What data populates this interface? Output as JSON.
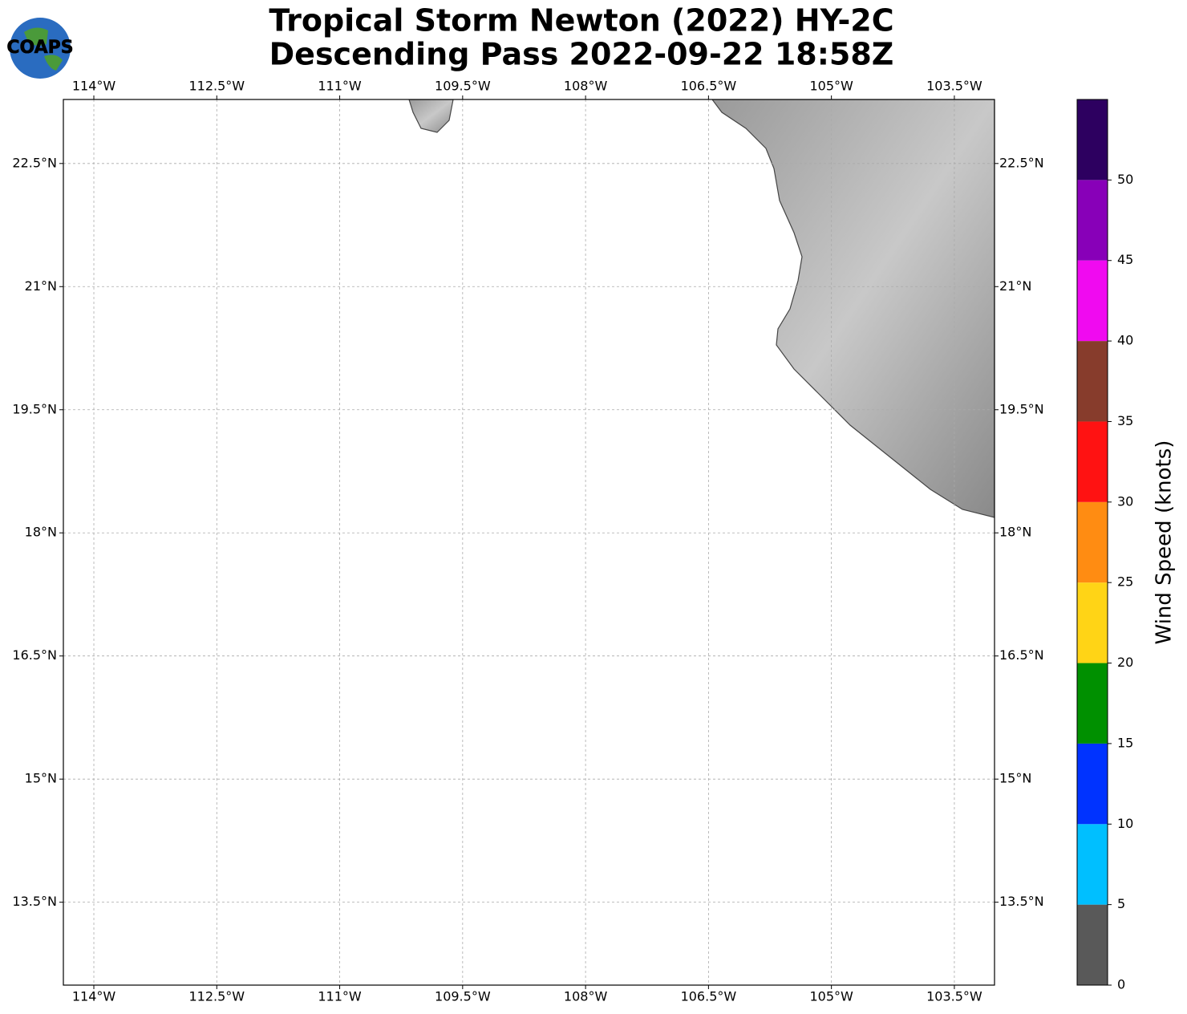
{
  "header": {
    "title": [
      "Tropical Storm Newton (2022) HY-2C",
      "Descending Pass 2022-09-22 18:58Z"
    ],
    "logo": "COAPS"
  },
  "map": {
    "xlim": [
      -114.372,
      -103.01
    ],
    "ylim": [
      12.49,
      23.28
    ],
    "xticks": [
      {
        "value": -114,
        "label": "114°W"
      },
      {
        "value": -112.5,
        "label": "112.5°W"
      },
      {
        "value": -111,
        "label": "111°W"
      },
      {
        "value": -109.5,
        "label": "109.5°W"
      },
      {
        "value": -108,
        "label": "108°W"
      },
      {
        "value": -106.5,
        "label": "106.5°W"
      },
      {
        "value": -105,
        "label": "105°W"
      },
      {
        "value": -103.5,
        "label": "103.5°W"
      }
    ],
    "yticks": [
      {
        "value": 13.5,
        "label": "13.5°N"
      },
      {
        "value": 15,
        "label": "15°N"
      },
      {
        "value": 16.5,
        "label": "16.5°N"
      },
      {
        "value": 18,
        "label": "18°N"
      },
      {
        "value": 19.5,
        "label": "19.5°N"
      },
      {
        "value": 21,
        "label": "21°N"
      },
      {
        "value": 22.5,
        "label": "22.5°N"
      }
    ],
    "grid": true
  },
  "colorbar": {
    "label": "Wind Speed (knots)",
    "lim": [
      0,
      55
    ],
    "bounds": [
      0,
      5,
      10,
      15,
      20,
      25,
      30,
      35,
      40,
      45,
      50,
      55
    ],
    "colors": [
      "#595959",
      "#00bfff",
      "#0033ff",
      "#009000",
      "#ffd416",
      "#ff8c12",
      "#ff1212",
      "#873c2c",
      "#f00af0",
      "#8800b8",
      "#2d0060"
    ],
    "ticks": [
      0,
      5,
      10,
      15,
      20,
      25,
      30,
      35,
      40,
      45,
      50
    ]
  }
}
